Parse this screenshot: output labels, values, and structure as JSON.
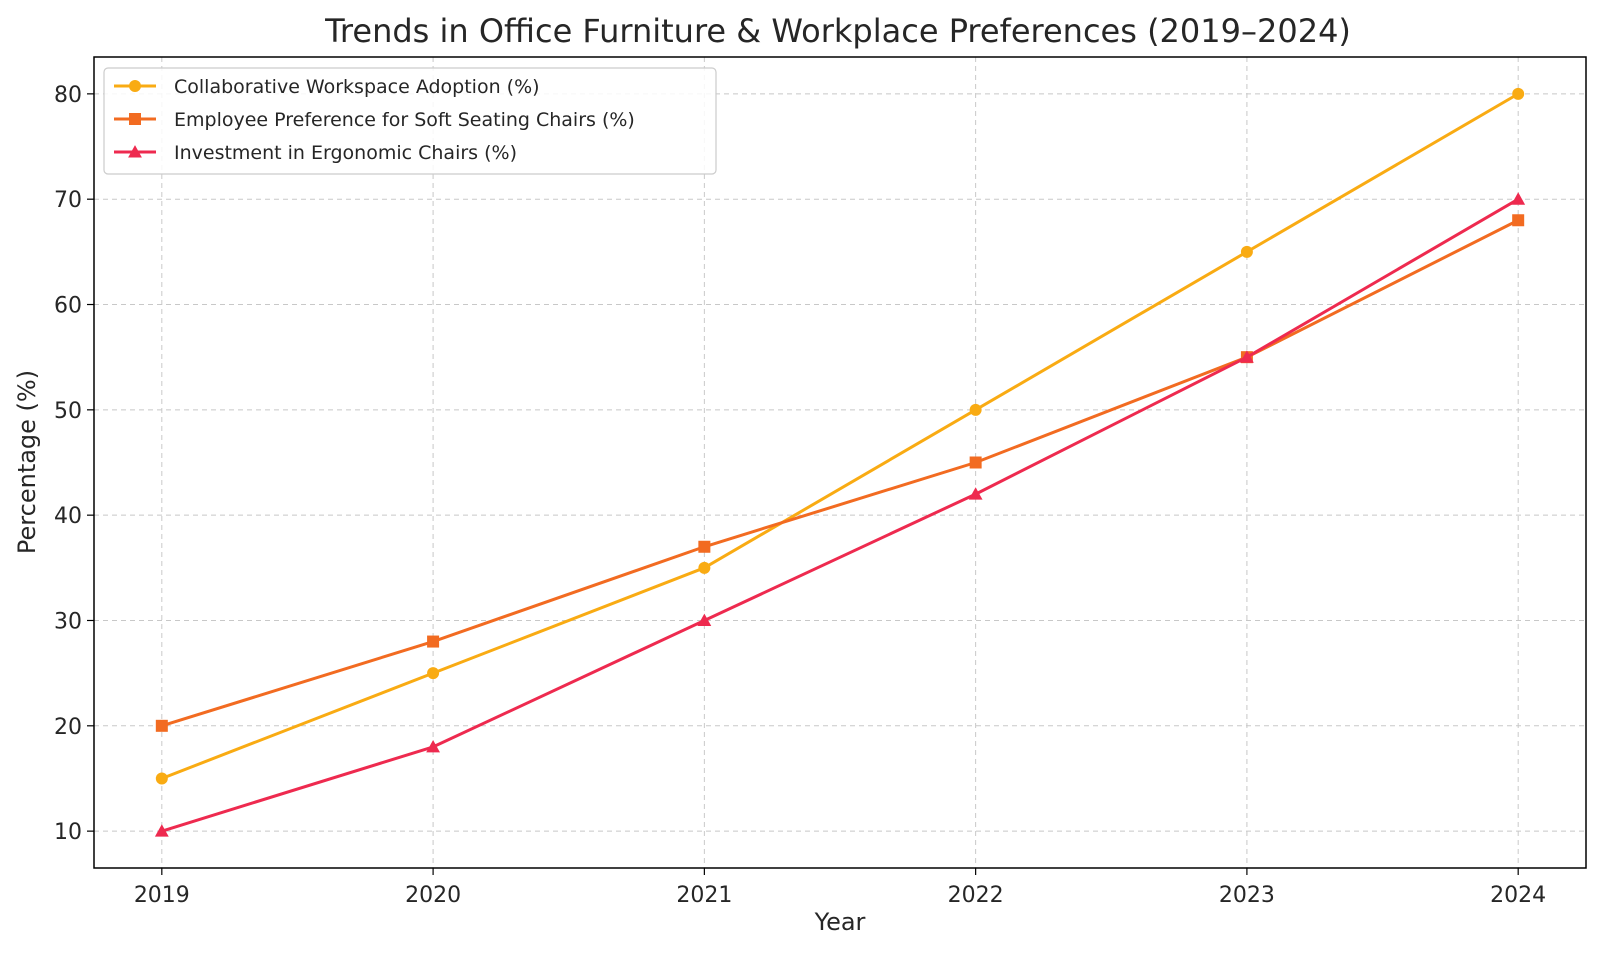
{
  "chart_data": {
    "type": "line",
    "title": "Trends in Office Furniture & Workplace Preferences (2019–2024)",
    "xlabel": "Year",
    "ylabel": "Percentage (%)",
    "x": [
      2019,
      2020,
      2021,
      2022,
      2023,
      2024
    ],
    "x_tick_labels": [
      "2019",
      "2020",
      "2021",
      "2022",
      "2023",
      "2024"
    ],
    "xlim": [
      2018.75,
      2024.25
    ],
    "ylim": [
      6.5,
      83.5
    ],
    "y_ticks": [
      10,
      20,
      30,
      40,
      50,
      60,
      70,
      80
    ],
    "y_tick_labels": [
      "10",
      "20",
      "30",
      "40",
      "50",
      "60",
      "70",
      "80"
    ],
    "grid": true,
    "legend_position": "top-left",
    "series": [
      {
        "name": "Collaborative Workspace Adoption (%)",
        "values": [
          15,
          25,
          35,
          50,
          65,
          80
        ],
        "color": "#F9AB13",
        "marker": "circle"
      },
      {
        "name": "Employee Preference for Soft Seating Chairs (%)",
        "values": [
          20,
          28,
          37,
          45,
          55,
          68
        ],
        "color": "#F26B21",
        "marker": "square"
      },
      {
        "name": "Investment in Ergonomic Chairs (%)",
        "values": [
          10,
          18,
          30,
          42,
          55,
          70
        ],
        "color": "#EE2A4F",
        "marker": "triangle"
      }
    ]
  }
}
